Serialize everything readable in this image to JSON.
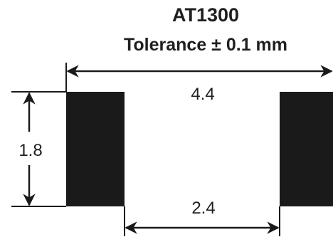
{
  "title": "AT1300",
  "subtitle": "Tolerance ± 0.1 mm",
  "dimensions": {
    "outer_span": "4.4",
    "pad_height": "1.8",
    "inner_gap": "2.4"
  },
  "colors": {
    "pad_fill": "#1a1a1a",
    "line": "#1a1a1a",
    "background": "#ffffff"
  }
}
